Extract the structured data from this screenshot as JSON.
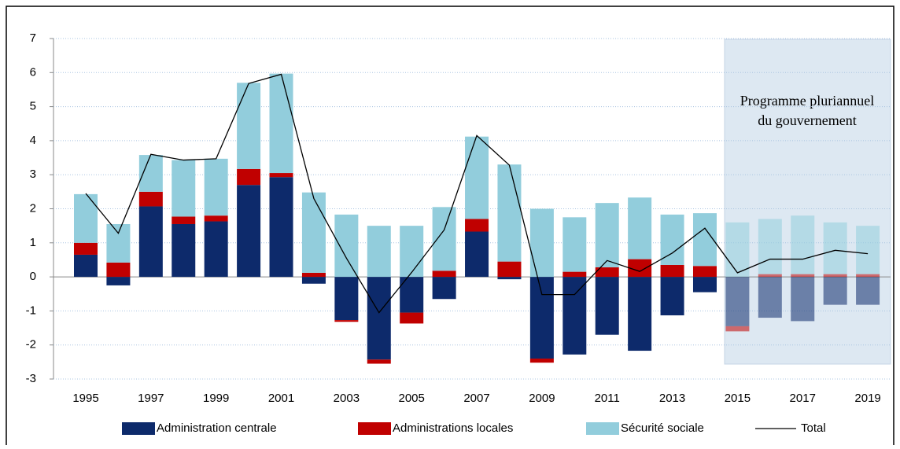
{
  "chart_data": {
    "type": "bar",
    "annotation": [
      "Programme pluriannuel",
      "du gouvernement"
    ],
    "categories": [
      "1995",
      null,
      "1997",
      null,
      "1999",
      null,
      "2001",
      null,
      "2003",
      null,
      "2005",
      null,
      "2007",
      null,
      "2009",
      null,
      "2011",
      null,
      "2013",
      null,
      "2015",
      null,
      "2017",
      null,
      "2019"
    ],
    "series": [
      {
        "name": "Administration centrale",
        "color": "#0d2a6b",
        "values": [
          0.65,
          -0.25,
          2.07,
          1.55,
          1.63,
          2.7,
          2.93,
          -0.2,
          -1.27,
          -2.43,
          -1.05,
          -0.65,
          1.33,
          -0.07,
          -2.4,
          -2.28,
          -1.7,
          -2.17,
          -1.13,
          -0.45,
          -1.45,
          -1.2,
          -1.3,
          -0.82,
          -0.82
        ]
      },
      {
        "name": "Administrations locales",
        "color": "#c00000",
        "values": [
          0.35,
          0.42,
          0.43,
          0.22,
          0.17,
          0.47,
          0.12,
          0.12,
          -0.05,
          -0.12,
          -0.32,
          0.18,
          0.37,
          0.45,
          -0.12,
          0.15,
          0.28,
          0.52,
          0.35,
          0.32,
          -0.15,
          0.08,
          0.08,
          0.08,
          0.08
        ]
      },
      {
        "name": "Sécurité sociale",
        "color": "#92cddc",
        "values": [
          1.43,
          1.13,
          1.08,
          1.66,
          1.67,
          2.53,
          2.92,
          2.36,
          1.83,
          1.5,
          1.5,
          1.87,
          2.42,
          2.85,
          2.0,
          1.6,
          1.89,
          1.81,
          1.48,
          1.55,
          1.6,
          1.62,
          1.72,
          1.52,
          1.42
        ]
      },
      {
        "name": "Total",
        "type": "line",
        "color": "#000000",
        "values": [
          2.45,
          1.28,
          3.6,
          3.43,
          3.47,
          5.68,
          5.95,
          2.3,
          0.55,
          -1.05,
          0.13,
          1.38,
          4.15,
          3.28,
          -0.52,
          -0.52,
          0.48,
          0.16,
          0.7,
          1.43,
          0.12,
          0.52,
          0.52,
          0.78,
          0.68
        ]
      }
    ],
    "ylim": [
      -3,
      7
    ],
    "yticks": [
      -3,
      -2,
      -1,
      0,
      1,
      2,
      3,
      4,
      5,
      6,
      7
    ],
    "grid": true
  }
}
